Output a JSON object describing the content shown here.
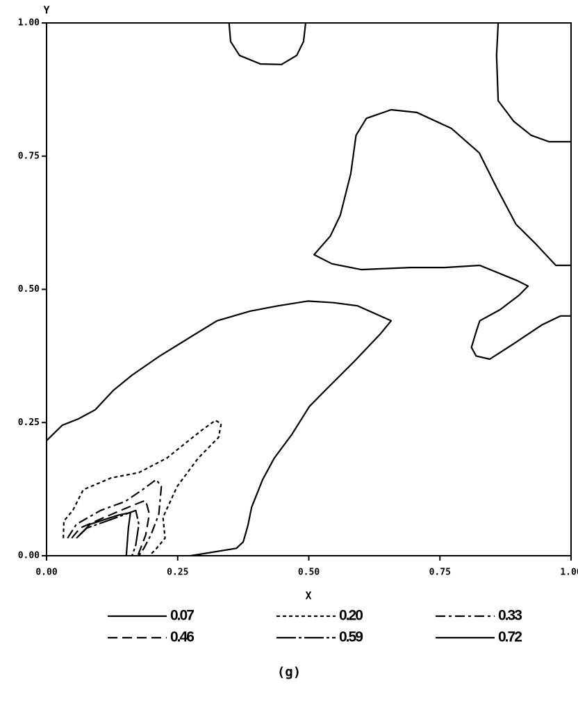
{
  "chart_data": {
    "type": "contour",
    "xlabel": "X",
    "ylabel": "Y",
    "caption": "(g)",
    "xlim": [
      0,
      1
    ],
    "ylim": [
      0,
      1
    ],
    "xticks": [
      {
        "value": 0,
        "label": "0.00"
      },
      {
        "value": 0.25,
        "label": "0.25"
      },
      {
        "value": 0.5,
        "label": "0.50"
      },
      {
        "value": 0.75,
        "label": "0.75"
      },
      {
        "value": 1,
        "label": "1.00"
      }
    ],
    "yticks": [
      {
        "value": 0,
        "label": "0.00"
      },
      {
        "value": 0.25,
        "label": "0.25"
      },
      {
        "value": 0.5,
        "label": "0.50"
      },
      {
        "value": 0.75,
        "label": "0.75"
      },
      {
        "value": 1,
        "label": "1.00"
      }
    ],
    "series": [
      {
        "name": "0.07",
        "color": "#000000",
        "dash": "none",
        "lines": [
          {
            "x": [
              0,
              0.03,
              0.061,
              0.093,
              0.127,
              0.163,
              0.216,
              0.282,
              0.325,
              0.388,
              0.441,
              0.498,
              0.547,
              0.593,
              0.657,
              0.637,
              0.587,
              0.534,
              0.501,
              0.468,
              0.434,
              0.412,
              0.391,
              0.384,
              0.375,
              0.362,
              0.275
            ],
            "y": [
              0.216,
              0.245,
              0.257,
              0.274,
              0.31,
              0.339,
              0.375,
              0.415,
              0.441,
              0.459,
              0.469,
              0.478,
              0.475,
              0.469,
              0.441,
              0.417,
              0.365,
              0.313,
              0.28,
              0.228,
              0.183,
              0.143,
              0.091,
              0.057,
              0.026,
              0.014,
              0
            ]
          },
          {
            "x": [
              0.348,
              0.351,
              0.368,
              0.408,
              0.448,
              0.477,
              0.49,
              0.494
            ],
            "y": [
              1,
              0.965,
              0.939,
              0.923,
              0.922,
              0.939,
              0.965,
              1
            ]
          },
          {
            "x": [
              0.861,
              0.858,
              0.861,
              0.891,
              0.924,
              0.958,
              1
            ],
            "y": [
              1,
              0.939,
              0.854,
              0.815,
              0.789,
              0.777,
              0.777
            ]
          },
          {
            "x": [
              1,
              0.98,
              0.944,
              0.891,
              0.845,
              0.819,
              0.81,
              0.819,
              0.826,
              0.865,
              0.901,
              0.918,
              0.898,
              0.826,
              0.759,
              0.693,
              0.6,
              0.544,
              0.51,
              0.541,
              0.56,
              0.58,
              0.59,
              0.61,
              0.657,
              0.706,
              0.772,
              0.825,
              0.858,
              0.895,
              0.931,
              0.971,
              1
            ],
            "y": [
              0.45,
              0.45,
              0.433,
              0.398,
              0.369,
              0.375,
              0.391,
              0.42,
              0.441,
              0.462,
              0.489,
              0.506,
              0.516,
              0.545,
              0.541,
              0.541,
              0.537,
              0.548,
              0.565,
              0.6,
              0.639,
              0.717,
              0.789,
              0.821,
              0.837,
              0.832,
              0.802,
              0.756,
              0.691,
              0.622,
              0.587,
              0.545,
              0.545
            ]
          }
        ]
      },
      {
        "name": "0.20",
        "color": "#000000",
        "dash": "5 4",
        "lines": [
          {
            "x": [
              0.032,
              0.033,
              0.05,
              0.07,
              0.123,
              0.176,
              0.229,
              0.295,
              0.322,
              0.333,
              0.328,
              0.289,
              0.249,
              0.222,
              0.226,
              0.209,
              0.196
            ],
            "y": [
              0.033,
              0.065,
              0.085,
              0.124,
              0.146,
              0.156,
              0.183,
              0.235,
              0.254,
              0.248,
              0.222,
              0.183,
              0.13,
              0.072,
              0.033,
              0.013,
              0
            ]
          }
        ]
      },
      {
        "name": "0.33",
        "color": "#000000",
        "dash": "14 5 4 5",
        "lines": [
          {
            "x": [
              0.04,
              0.057,
              0.103,
              0.15,
              0.183,
              0.209,
              0.219,
              0.214,
              0.199,
              0.185,
              0.176
            ],
            "y": [
              0.033,
              0.059,
              0.085,
              0.102,
              0.124,
              0.143,
              0.13,
              0.078,
              0.039,
              0.013,
              0
            ]
          }
        ]
      },
      {
        "name": "0.46",
        "color": "#000000",
        "dash": "14 7",
        "lines": [
          {
            "x": [
              0.048,
              0.064,
              0.11,
              0.163,
              0.189,
              0.196,
              0.189,
              0.174
            ],
            "y": [
              0.033,
              0.052,
              0.072,
              0.094,
              0.104,
              0.078,
              0.039,
              0
            ]
          }
        ]
      },
      {
        "name": "0.59",
        "color": "#000000",
        "dash": "28 4 4 4",
        "lines": [
          {
            "x": [
              0.057,
              0.077,
              0.123,
              0.17,
              0.176,
              0.17,
              0.163
            ],
            "y": [
              0.033,
              0.052,
              0.068,
              0.085,
              0.059,
              0.02,
              0
            ]
          }
        ]
      },
      {
        "name": "0.72",
        "color": "#000000",
        "dash": "none",
        "lines": [
          {
            "x": [
              0.061,
              0.083,
              0.136,
              0.16,
              0.156,
              0.152
            ],
            "y": [
              0.037,
              0.059,
              0.076,
              0.081,
              0.052,
              0
            ]
          }
        ]
      }
    ]
  }
}
